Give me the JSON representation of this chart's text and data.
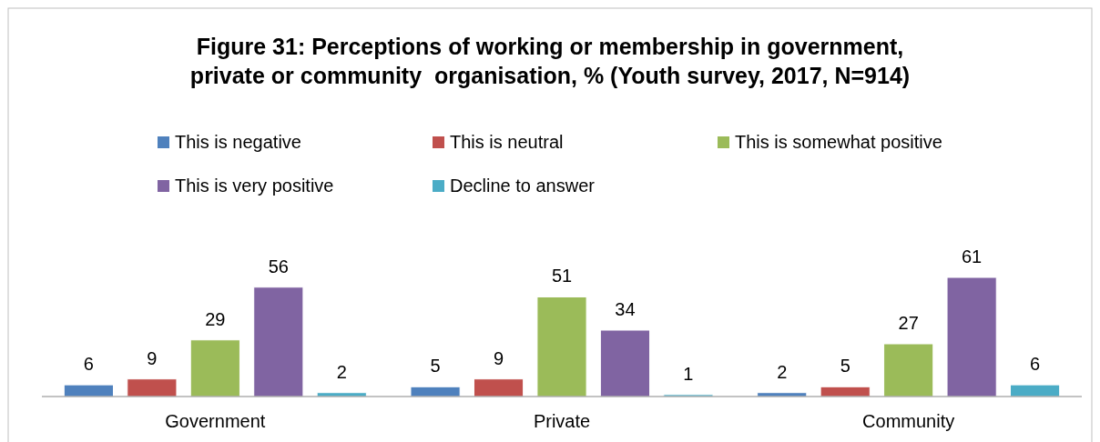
{
  "chart_data": {
    "type": "bar",
    "title": "Figure 31: Perceptions of working or membership in government,\nprivate or community  organisation, % (Youth survey, 2017, N=914)",
    "categories": [
      "Government",
      "Private",
      "Community"
    ],
    "series": [
      {
        "name": "This is negative",
        "color": "#4f81bd",
        "values": [
          6,
          5,
          2
        ]
      },
      {
        "name": "This is neutral",
        "color": "#c0504d",
        "values": [
          9,
          9,
          5
        ]
      },
      {
        "name": "This is somewhat positive",
        "color": "#9bbb59",
        "values": [
          29,
          51,
          27
        ]
      },
      {
        "name": "This is very positive",
        "color": "#8064a2",
        "values": [
          56,
          34,
          61
        ]
      },
      {
        "name": "Decline to answer",
        "color": "#4bacc6",
        "values": [
          2,
          1,
          6
        ]
      }
    ],
    "data_labels": true,
    "legend": "top"
  }
}
